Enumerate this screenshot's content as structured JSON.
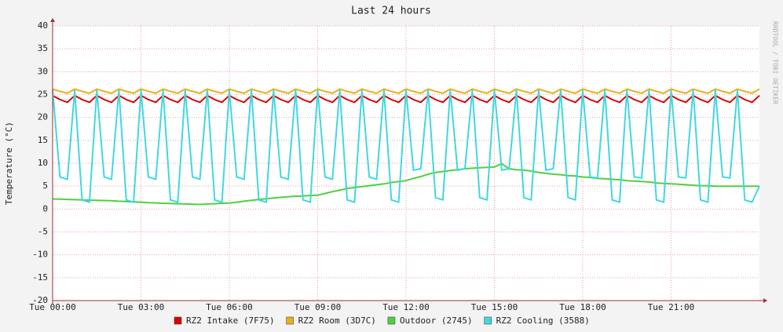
{
  "chart_data": {
    "type": "line",
    "title": "Last 24 hours",
    "y_label": "Temperature (°C)",
    "watermark": "RRDTOOL / TOBI OETIKER",
    "x": [
      0,
      0.25,
      0.5,
      0.75,
      1,
      1.25,
      1.5,
      1.75,
      2,
      2.25,
      2.5,
      2.75,
      3,
      3.25,
      3.5,
      3.75,
      4,
      4.25,
      4.5,
      4.75,
      5,
      5.25,
      5.5,
      5.75,
      6,
      6.25,
      6.5,
      6.75,
      7,
      7.25,
      7.5,
      7.75,
      8,
      8.25,
      8.5,
      8.75,
      9,
      9.25,
      9.5,
      9.75,
      10,
      10.25,
      10.5,
      10.75,
      11,
      11.25,
      11.5,
      11.75,
      12,
      12.25,
      12.5,
      12.75,
      13,
      13.25,
      13.5,
      13.75,
      14,
      14.25,
      14.5,
      14.75,
      15,
      15.25,
      15.5,
      15.75,
      16,
      16.25,
      16.5,
      16.75,
      17,
      17.25,
      17.5,
      17.75,
      18,
      18.25,
      18.5,
      18.75,
      19,
      19.25,
      19.5,
      19.75,
      20,
      20.25,
      20.5,
      20.75,
      21,
      21.25,
      21.5,
      21.75,
      22,
      22.25,
      22.5,
      22.75,
      23,
      23.25,
      23.5,
      23.75,
      24
    ],
    "xlim": [
      0,
      24
    ],
    "xticks": [
      {
        "value": 0,
        "label": "Tue 00:00"
      },
      {
        "value": 3,
        "label": "Tue 03:00"
      },
      {
        "value": 6,
        "label": "Tue 06:00"
      },
      {
        "value": 9,
        "label": "Tue 09:00"
      },
      {
        "value": 12,
        "label": "Tue 12:00"
      },
      {
        "value": 15,
        "label": "Tue 15:00"
      },
      {
        "value": 18,
        "label": "Tue 18:00"
      },
      {
        "value": 21,
        "label": "Tue 21:00"
      }
    ],
    "ylim": [
      -20,
      40
    ],
    "yticks": [
      -20,
      -15,
      -10,
      -5,
      0,
      5,
      10,
      15,
      20,
      25,
      30,
      35,
      40
    ],
    "grid": true,
    "series": [
      {
        "name": "RZ2 Intake (7F75)",
        "color": "#dd0000",
        "values": [
          24.8,
          23.9,
          23.3,
          24.8,
          23.9,
          23.3,
          24.8,
          23.9,
          23.3,
          24.8,
          23.9,
          23.3,
          24.8,
          23.9,
          23.3,
          24.8,
          23.9,
          23.3,
          24.8,
          23.9,
          23.3,
          24.8,
          23.9,
          23.3,
          24.8,
          23.9,
          23.3,
          24.8,
          23.9,
          23.3,
          24.8,
          23.9,
          23.3,
          24.8,
          23.9,
          23.3,
          24.8,
          23.9,
          23.3,
          24.8,
          23.9,
          23.3,
          24.8,
          23.9,
          23.3,
          24.8,
          23.9,
          23.3,
          24.8,
          23.9,
          23.3,
          24.8,
          23.9,
          23.3,
          24.8,
          23.9,
          23.3,
          24.8,
          23.9,
          23.3,
          24.8,
          23.9,
          23.3,
          24.8,
          23.9,
          23.3,
          24.8,
          23.9,
          23.3,
          24.8,
          23.9,
          23.3,
          24.8,
          23.9,
          23.3,
          24.8,
          23.9,
          23.3,
          24.8,
          23.9,
          23.3,
          24.8,
          23.9,
          23.3,
          24.8,
          23.9,
          23.3,
          24.8,
          23.9,
          23.3,
          24.8,
          23.9,
          23.3,
          24.8,
          23.9,
          23.3,
          24.8
        ]
      },
      {
        "name": "RZ2 Room (3D7C)",
        "color": "#e8b020",
        "values": [
          26.2,
          25.7,
          25.3,
          26.2,
          25.7,
          25.3,
          26.2,
          25.7,
          25.3,
          26.2,
          25.7,
          25.3,
          26.2,
          25.7,
          25.3,
          26.2,
          25.7,
          25.3,
          26.2,
          25.7,
          25.3,
          26.2,
          25.7,
          25.3,
          26.2,
          25.7,
          25.3,
          26.2,
          25.7,
          25.3,
          26.2,
          25.7,
          25.3,
          26.2,
          25.7,
          25.3,
          26.2,
          25.7,
          25.3,
          26.2,
          25.7,
          25.3,
          26.2,
          25.7,
          25.3,
          26.2,
          25.7,
          25.3,
          26.2,
          25.7,
          25.3,
          26.2,
          25.7,
          25.3,
          26.2,
          25.7,
          25.3,
          26.2,
          25.7,
          25.3,
          26.2,
          25.7,
          25.3,
          26.2,
          25.7,
          25.3,
          26.2,
          25.7,
          25.3,
          26.2,
          25.7,
          25.3,
          26.2,
          25.7,
          25.3,
          26.2,
          25.7,
          25.3,
          26.2,
          25.7,
          25.3,
          26.2,
          25.7,
          25.3,
          26.2,
          25.7,
          25.3,
          26.2,
          25.7,
          25.3,
          26.2,
          25.7,
          25.3,
          26.2,
          25.7,
          25.3,
          26.2
        ]
      },
      {
        "name": "Outdoor (2745)",
        "color": "#50d040",
        "values": [
          2.2,
          2.15,
          2.1,
          2.05,
          2.0,
          1.95,
          1.9,
          1.85,
          1.8,
          1.7,
          1.65,
          1.55,
          1.5,
          1.4,
          1.35,
          1.25,
          1.2,
          1.15,
          1.1,
          1.05,
          1.0,
          1.1,
          1.15,
          1.25,
          1.3,
          1.5,
          1.7,
          1.9,
          2.1,
          2.25,
          2.4,
          2.55,
          2.7,
          2.8,
          2.85,
          2.95,
          3.0,
          3.4,
          3.8,
          4.1,
          4.5,
          4.7,
          4.9,
          5.1,
          5.3,
          5.5,
          5.8,
          6.0,
          6.2,
          6.7,
          7.1,
          7.6,
          8.0,
          8.2,
          8.4,
          8.6,
          8.8,
          8.9,
          9.0,
          9.1,
          9.2,
          9.9,
          8.8,
          8.6,
          8.5,
          8.3,
          8.0,
          7.8,
          7.6,
          7.5,
          7.3,
          7.2,
          7.0,
          6.9,
          6.7,
          6.6,
          6.5,
          6.4,
          6.2,
          6.1,
          6.0,
          5.9,
          5.7,
          5.6,
          5.5,
          5.4,
          5.3,
          5.2,
          5.1,
          5.1,
          5.0,
          5.0,
          5.0,
          5.0,
          5.0,
          5.0,
          5.0
        ]
      },
      {
        "name": "RZ2 Cooling (3588)",
        "color": "#40d8e0",
        "values": [
          26,
          7,
          6.5,
          26,
          2,
          1.5,
          26,
          7,
          6.5,
          26,
          2,
          1.5,
          26,
          7,
          6.5,
          26,
          2,
          1.5,
          26,
          7,
          6.5,
          26,
          2,
          1.5,
          26,
          7,
          6.5,
          26,
          2,
          1.5,
          26,
          7,
          6.5,
          26,
          2,
          1.5,
          26,
          7,
          6.5,
          26,
          2,
          1.5,
          26,
          7,
          6.5,
          26,
          2,
          1.5,
          26,
          8.5,
          8.8,
          26,
          2.5,
          2,
          26,
          8.5,
          8.8,
          26,
          2.5,
          2,
          26,
          8.5,
          8.8,
          26,
          2.5,
          2,
          26,
          8.5,
          8.8,
          26,
          2.5,
          2,
          26,
          7,
          6.8,
          26,
          2,
          1.5,
          26,
          7,
          6.8,
          26,
          2,
          1.5,
          26,
          7,
          6.8,
          26,
          2,
          1.5,
          26,
          7,
          6.8,
          26,
          2,
          1.5,
          5
        ]
      }
    ]
  }
}
